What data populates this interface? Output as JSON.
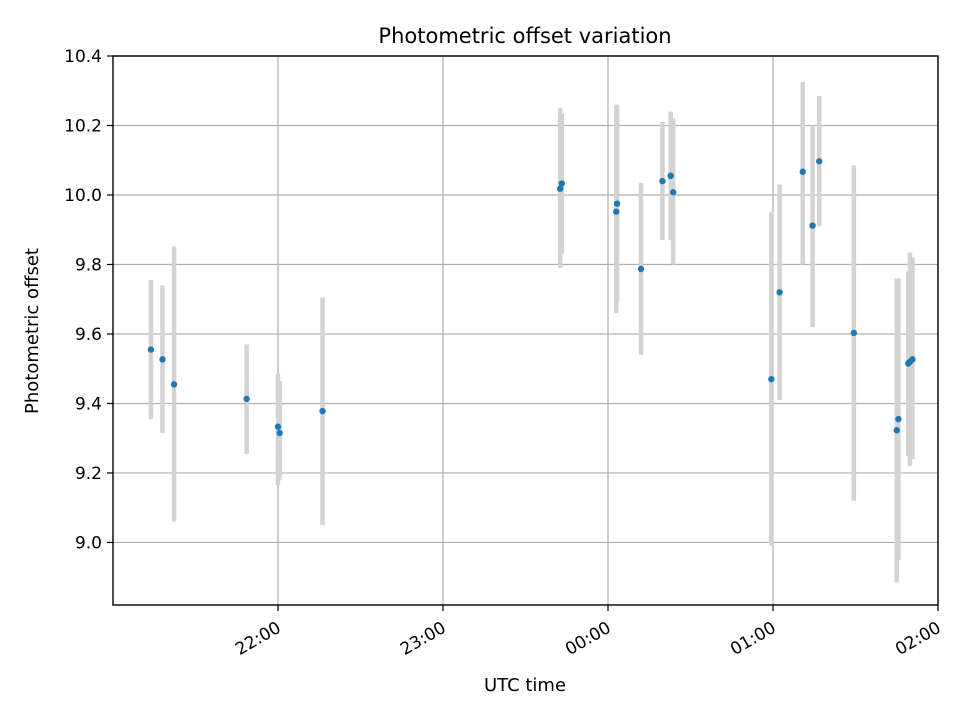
{
  "chart_data": {
    "type": "scatter",
    "title": "Photometric offset variation",
    "xlabel": "UTC time",
    "ylabel": "Photometric offset",
    "x_unit": "UTC time (hours after 00:00)",
    "xlim": [
      -3.0,
      2.0
    ],
    "ylim": [
      8.82,
      10.4
    ],
    "x_ticks": [
      {
        "value": -2,
        "label": "22:00"
      },
      {
        "value": -1,
        "label": "23:00"
      },
      {
        "value": 0,
        "label": "00:00"
      },
      {
        "value": 1,
        "label": "01:00"
      },
      {
        "value": 2,
        "label": "02:00"
      }
    ],
    "y_ticks": [
      {
        "value": 9.0,
        "label": "9.0"
      },
      {
        "value": 9.2,
        "label": "9.2"
      },
      {
        "value": 9.4,
        "label": "9.4"
      },
      {
        "value": 9.6,
        "label": "9.6"
      },
      {
        "value": 9.8,
        "label": "9.8"
      },
      {
        "value": 10.0,
        "label": "10.0"
      },
      {
        "value": 10.2,
        "label": "10.2"
      },
      {
        "value": 10.4,
        "label": "10.4"
      }
    ],
    "grid": true,
    "marker_color": "#1f77b4",
    "errorbar_color": "#d3d3d3",
    "series": [
      {
        "points": [
          {
            "x": -2.77,
            "y": 9.555,
            "lo": 9.355,
            "hi": 9.755
          },
          {
            "x": -2.7,
            "y": 9.527,
            "lo": 9.315,
            "hi": 9.74
          },
          {
            "x": -2.63,
            "y": 9.455,
            "lo": 9.06,
            "hi": 9.852
          },
          {
            "x": -2.19,
            "y": 9.413,
            "lo": 9.255,
            "hi": 9.57
          },
          {
            "x": -2.0,
            "y": 9.333,
            "lo": 9.165,
            "hi": 9.485
          },
          {
            "x": -1.99,
            "y": 9.315,
            "lo": 9.18,
            "hi": 9.465
          },
          {
            "x": -1.73,
            "y": 9.378,
            "lo": 9.05,
            "hi": 9.705
          },
          {
            "x": -0.29,
            "y": 10.018,
            "lo": 9.79,
            "hi": 10.25
          },
          {
            "x": -0.28,
            "y": 10.033,
            "lo": 9.83,
            "hi": 10.235
          },
          {
            "x": 0.05,
            "y": 9.952,
            "lo": 9.66,
            "hi": 10.255
          },
          {
            "x": 0.055,
            "y": 9.975,
            "lo": 9.69,
            "hi": 10.26
          },
          {
            "x": 0.2,
            "y": 9.787,
            "lo": 9.54,
            "hi": 10.035
          },
          {
            "x": 0.33,
            "y": 10.04,
            "lo": 9.87,
            "hi": 10.21
          },
          {
            "x": 0.38,
            "y": 10.055,
            "lo": 9.87,
            "hi": 10.24
          },
          {
            "x": 0.395,
            "y": 10.008,
            "lo": 9.8,
            "hi": 10.22
          },
          {
            "x": 0.99,
            "y": 9.47,
            "lo": 8.99,
            "hi": 9.95
          },
          {
            "x": 1.04,
            "y": 9.72,
            "lo": 9.41,
            "hi": 10.03
          },
          {
            "x": 1.18,
            "y": 10.067,
            "lo": 9.8,
            "hi": 10.325
          },
          {
            "x": 1.24,
            "y": 9.912,
            "lo": 9.62,
            "hi": 10.2
          },
          {
            "x": 1.28,
            "y": 10.097,
            "lo": 9.91,
            "hi": 10.285
          },
          {
            "x": 1.49,
            "y": 9.603,
            "lo": 9.12,
            "hi": 10.085
          },
          {
            "x": 1.75,
            "y": 9.323,
            "lo": 8.885,
            "hi": 9.76
          },
          {
            "x": 1.76,
            "y": 9.355,
            "lo": 8.95,
            "hi": 9.76
          },
          {
            "x": 1.82,
            "y": 9.515,
            "lo": 9.25,
            "hi": 9.78
          },
          {
            "x": 1.83,
            "y": 9.52,
            "lo": 9.22,
            "hi": 9.835
          },
          {
            "x": 1.845,
            "y": 9.527,
            "lo": 9.24,
            "hi": 9.82
          }
        ]
      }
    ]
  }
}
